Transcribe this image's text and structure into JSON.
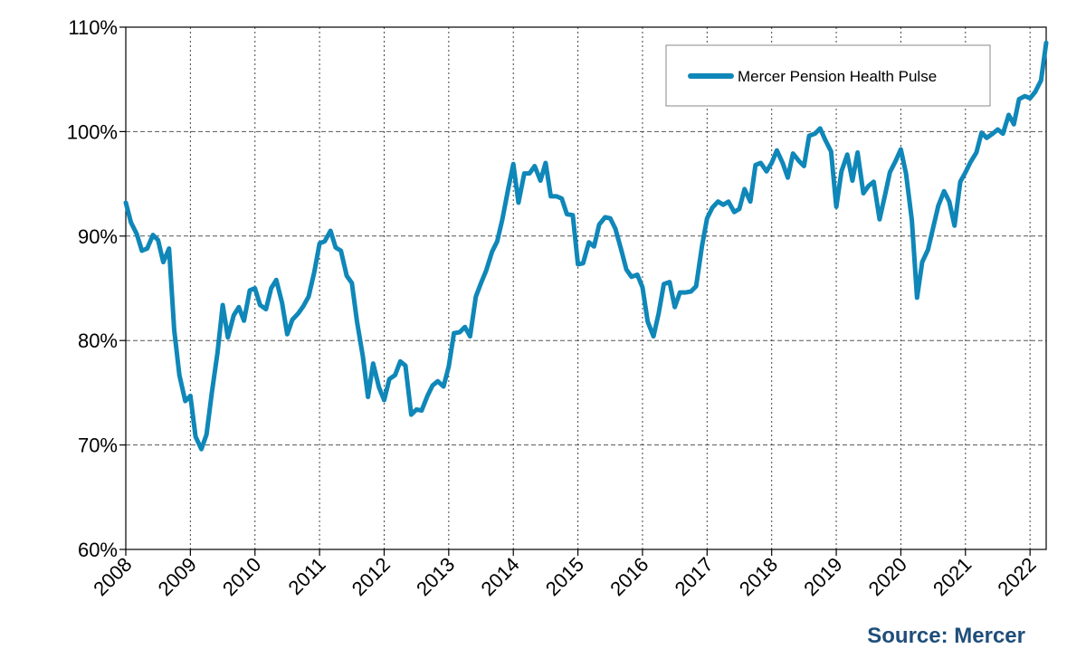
{
  "chart_data": {
    "type": "line",
    "title": "",
    "xlabel": "",
    "ylabel": "",
    "x_ticks": [
      "2008",
      "2009",
      "2010",
      "2011",
      "2012",
      "2013",
      "2014",
      "2015",
      "2016",
      "2017",
      "2018",
      "2019",
      "2020",
      "2021",
      "2022"
    ],
    "y_ticks": [
      60,
      70,
      80,
      90,
      100,
      110
    ],
    "y_tick_labels": [
      "60%",
      "70%",
      "80%",
      "90%",
      "100%",
      "110%"
    ],
    "xlim": [
      2008.0,
      2022.25
    ],
    "ylim": [
      60,
      110
    ],
    "grid": {
      "horizontal": "dashed",
      "vertical": "dotted"
    },
    "legend_position": "top-right",
    "series": [
      {
        "name": "Mercer Pension Health Pulse",
        "color": "#0f87b8",
        "x": [
          2008.0,
          2008.08,
          2008.17,
          2008.25,
          2008.33,
          2008.42,
          2008.5,
          2008.58,
          2008.67,
          2008.75,
          2008.83,
          2008.92,
          2009.0,
          2009.08,
          2009.17,
          2009.25,
          2009.33,
          2009.42,
          2009.5,
          2009.58,
          2009.67,
          2009.75,
          2009.83,
          2009.92,
          2010.0,
          2010.08,
          2010.17,
          2010.25,
          2010.33,
          2010.42,
          2010.5,
          2010.58,
          2010.67,
          2010.75,
          2010.83,
          2010.92,
          2011.0,
          2011.08,
          2011.17,
          2011.25,
          2011.33,
          2011.42,
          2011.5,
          2011.58,
          2011.67,
          2011.75,
          2011.83,
          2011.92,
          2012.0,
          2012.08,
          2012.17,
          2012.25,
          2012.33,
          2012.42,
          2012.5,
          2012.58,
          2012.67,
          2012.75,
          2012.83,
          2012.92,
          2013.0,
          2013.08,
          2013.17,
          2013.25,
          2013.33,
          2013.42,
          2013.5,
          2013.58,
          2013.67,
          2013.75,
          2013.83,
          2013.92,
          2014.0,
          2014.08,
          2014.17,
          2014.25,
          2014.33,
          2014.42,
          2014.5,
          2014.58,
          2014.67,
          2014.75,
          2014.83,
          2014.92,
          2015.0,
          2015.08,
          2015.17,
          2015.25,
          2015.33,
          2015.42,
          2015.5,
          2015.58,
          2015.67,
          2015.75,
          2015.83,
          2015.92,
          2016.0,
          2016.08,
          2016.17,
          2016.25,
          2016.33,
          2016.42,
          2016.5,
          2016.58,
          2016.67,
          2016.75,
          2016.83,
          2016.92,
          2017.0,
          2017.08,
          2017.17,
          2017.25,
          2017.33,
          2017.42,
          2017.5,
          2017.58,
          2017.67,
          2017.75,
          2017.83,
          2017.92,
          2018.0,
          2018.08,
          2018.17,
          2018.25,
          2018.33,
          2018.42,
          2018.5,
          2018.58,
          2018.67,
          2018.75,
          2018.83,
          2018.92,
          2019.0,
          2019.08,
          2019.17,
          2019.25,
          2019.33,
          2019.42,
          2019.5,
          2019.58,
          2019.67,
          2019.75,
          2019.83,
          2019.92,
          2020.0,
          2020.08,
          2020.17,
          2020.25,
          2020.33,
          2020.42,
          2020.5,
          2020.58,
          2020.67,
          2020.75,
          2020.83,
          2020.92,
          2021.0,
          2021.08,
          2021.17,
          2021.25,
          2021.33,
          2021.42,
          2021.5,
          2021.58,
          2021.67,
          2021.75,
          2021.83,
          2021.92,
          2022.0,
          2022.08,
          2022.17,
          2022.25
        ],
        "values": [
          93.2,
          91.3,
          90.2,
          88.6,
          88.8,
          90.1,
          89.6,
          87.5,
          88.8,
          81.0,
          76.7,
          74.2,
          74.7,
          70.8,
          69.6,
          71.0,
          74.9,
          78.8,
          83.4,
          80.3,
          82.4,
          83.2,
          81.9,
          84.8,
          85.0,
          83.4,
          83.0,
          85.0,
          85.8,
          83.6,
          80.6,
          82.0,
          82.6,
          83.3,
          84.2,
          86.6,
          89.3,
          89.5,
          90.5,
          88.9,
          88.6,
          86.2,
          85.5,
          81.8,
          78.5,
          74.6,
          77.8,
          75.5,
          74.3,
          76.3,
          76.7,
          78.0,
          77.6,
          72.9,
          73.4,
          73.3,
          74.7,
          75.7,
          76.1,
          75.6,
          77.5,
          80.7,
          80.8,
          81.3,
          80.4,
          84.2,
          85.5,
          86.7,
          88.5,
          89.5,
          91.6,
          94.5,
          96.9,
          93.2,
          96.0,
          96.0,
          96.7,
          95.3,
          97.0,
          93.8,
          93.8,
          93.6,
          92.1,
          92.0,
          87.3,
          87.4,
          89.4,
          89.0,
          91.1,
          91.8,
          91.7,
          90.7,
          88.7,
          86.8,
          86.1,
          86.3,
          85.1,
          81.8,
          80.4,
          82.6,
          85.4,
          85.6,
          83.2,
          84.6,
          84.6,
          84.7,
          85.2,
          89.0,
          91.7,
          92.7,
          93.3,
          93.0,
          93.3,
          92.3,
          92.6,
          94.5,
          93.3,
          96.8,
          97.0,
          96.2,
          97.0,
          98.2,
          97.0,
          95.6,
          97.9,
          97.2,
          96.7,
          99.6,
          99.8,
          100.3,
          99.2,
          98.1,
          92.8,
          96.2,
          97.8,
          95.3,
          98.0,
          94.1,
          94.8,
          95.2,
          91.6,
          93.8,
          96.1,
          97.2,
          98.3,
          96.0,
          91.5,
          84.1,
          87.5,
          88.7,
          90.8,
          92.9,
          94.3,
          93.3,
          91.0,
          95.2,
          96.1,
          97.1,
          98.0,
          99.9,
          99.4,
          99.8,
          100.2,
          99.8,
          101.6,
          100.7,
          103.1,
          103.4,
          103.2,
          103.8,
          104.9,
          108.5
        ]
      }
    ],
    "source": "Source: Mercer"
  }
}
